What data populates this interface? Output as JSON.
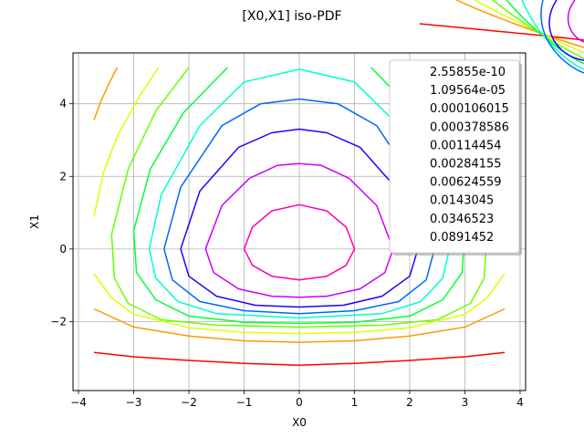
{
  "chart_data": {
    "type": "line",
    "title": "[X0,X1] iso-PDF",
    "xlabel": "X0",
    "ylabel": "X1",
    "xlim": [
      -4.1,
      4.1
    ],
    "ylim": [
      -3.9,
      5.4
    ],
    "x_ticks": [
      -4,
      -3,
      -2,
      -1,
      0,
      1,
      2,
      3,
      4
    ],
    "y_ticks": [
      -2,
      0,
      2,
      4
    ],
    "x_tick_labels": [
      "−4",
      "−3",
      "−2",
      "−1",
      "0",
      "1",
      "2",
      "3",
      "4"
    ],
    "y_tick_labels": [
      "−2",
      "0",
      "2",
      "4"
    ],
    "grid": true,
    "legend_position": "top-right",
    "series": [
      {
        "name": "2.55855e-10",
        "color": "#ff0000",
        "points": [
          [
            -3.72,
            -2.85
          ],
          [
            -3,
            -2.97
          ],
          [
            -2,
            -3.07
          ],
          [
            -1,
            -3.15
          ],
          [
            0,
            -3.2
          ],
          [
            1,
            -3.15
          ],
          [
            2,
            -3.07
          ],
          [
            3,
            -2.97
          ],
          [
            3.72,
            -2.85
          ]
        ]
      },
      {
        "name": "1.09564e-05",
        "color": "#ff9900",
        "points": [
          [
            -3.3,
            5.0
          ],
          [
            -3.45,
            4.55
          ],
          [
            -3.6,
            4.05
          ],
          [
            -3.72,
            3.55
          ]
        ],
        "points2": [
          [
            -3.72,
            -1.65
          ],
          [
            -3,
            -2.15
          ],
          [
            -2,
            -2.4
          ],
          [
            -1,
            -2.53
          ],
          [
            0,
            -2.57
          ],
          [
            1,
            -2.53
          ],
          [
            2,
            -2.4
          ],
          [
            3,
            -2.15
          ],
          [
            3.72,
            -1.65
          ]
        ]
      },
      {
        "name": "0.000106015",
        "color": "#ddff00",
        "points": [
          [
            -2.55,
            5.0
          ],
          [
            -2.9,
            4.2
          ],
          [
            -3.3,
            3.1
          ],
          [
            -3.55,
            2.1
          ],
          [
            -3.72,
            0.9
          ]
        ],
        "points2": [
          [
            -3.72,
            -0.68
          ],
          [
            -3.4,
            -1.35
          ],
          [
            -3,
            -1.8
          ],
          [
            -2,
            -2.17
          ],
          [
            -1,
            -2.3
          ],
          [
            0,
            -2.33
          ],
          [
            1,
            -2.3
          ],
          [
            2,
            -2.17
          ],
          [
            3,
            -1.8
          ],
          [
            3.4,
            -1.35
          ],
          [
            3.72,
            -0.68
          ]
        ]
      },
      {
        "name": "0.000378586",
        "color": "#66ff00",
        "points": [
          [
            -2.0,
            5.0
          ],
          [
            -2.6,
            3.8
          ],
          [
            -3.1,
            2.2
          ],
          [
            -3.4,
            0.4
          ],
          [
            -3.35,
            -0.8
          ],
          [
            -3.1,
            -1.5
          ],
          [
            -2.5,
            -1.95
          ],
          [
            -1.5,
            -2.1
          ],
          [
            0,
            -2.15
          ],
          [
            1.5,
            -2.1
          ],
          [
            2.5,
            -1.95
          ],
          [
            3.1,
            -1.5
          ],
          [
            3.35,
            -0.8
          ],
          [
            3.4,
            0.4
          ],
          [
            3.1,
            2.2
          ],
          [
            2.6,
            3.8
          ],
          [
            2.0,
            5.0
          ]
        ]
      },
      {
        "name": "0.00114454",
        "color": "#00ff33",
        "points": [
          [
            -1.3,
            5.0
          ],
          [
            -2.1,
            3.75
          ],
          [
            -2.7,
            2.2
          ],
          [
            -3.0,
            0.5
          ],
          [
            -2.95,
            -0.65
          ],
          [
            -2.6,
            -1.4
          ],
          [
            -2,
            -1.85
          ],
          [
            -1,
            -2.02
          ],
          [
            0,
            -2.05
          ],
          [
            1,
            -2.02
          ],
          [
            2,
            -1.85
          ],
          [
            2.6,
            -1.4
          ],
          [
            2.95,
            -0.65
          ],
          [
            3.0,
            0.5
          ],
          [
            2.7,
            2.2
          ],
          [
            2.1,
            3.75
          ],
          [
            1.3,
            5.0
          ]
        ]
      },
      {
        "name": "0.00284155",
        "color": "#00ffcc",
        "points": [
          [
            -2.72,
            0.0
          ],
          [
            -2.6,
            -0.8
          ],
          [
            -2.2,
            -1.45
          ],
          [
            -1.5,
            -1.78
          ],
          [
            0,
            -1.9
          ],
          [
            1.5,
            -1.78
          ],
          [
            2.2,
            -1.45
          ],
          [
            2.6,
            -0.8
          ],
          [
            2.72,
            0.0
          ],
          [
            2.5,
            1.5
          ],
          [
            1.8,
            3.4
          ],
          [
            1.0,
            4.6
          ],
          [
            0,
            4.95
          ],
          [
            -1.0,
            4.6
          ],
          [
            -1.8,
            3.4
          ],
          [
            -2.5,
            1.5
          ],
          [
            -2.72,
            0.0
          ]
        ]
      },
      {
        "name": "0.00624559",
        "color": "#0066ff",
        "points": [
          [
            -2.45,
            0.0
          ],
          [
            -2.3,
            -0.85
          ],
          [
            -1.8,
            -1.45
          ],
          [
            -1,
            -1.7
          ],
          [
            0,
            -1.78
          ],
          [
            1,
            -1.7
          ],
          [
            1.8,
            -1.45
          ],
          [
            2.3,
            -0.85
          ],
          [
            2.45,
            0.0
          ],
          [
            2.15,
            1.7
          ],
          [
            1.4,
            3.4
          ],
          [
            0.7,
            4.0
          ],
          [
            0,
            4.13
          ],
          [
            -0.7,
            4.0
          ],
          [
            -1.4,
            3.4
          ],
          [
            -2.15,
            1.7
          ],
          [
            -2.45,
            0.0
          ]
        ]
      },
      {
        "name": "0.0143045",
        "color": "#2200ff",
        "points": [
          [
            -2.15,
            0.0
          ],
          [
            -2.0,
            -0.75
          ],
          [
            -1.5,
            -1.3
          ],
          [
            -0.8,
            -1.55
          ],
          [
            0,
            -1.6
          ],
          [
            0.8,
            -1.55
          ],
          [
            1.5,
            -1.3
          ],
          [
            2.0,
            -0.75
          ],
          [
            2.15,
            0.0
          ],
          [
            1.8,
            1.6
          ],
          [
            1.1,
            2.8
          ],
          [
            0.5,
            3.2
          ],
          [
            0,
            3.3
          ],
          [
            -0.5,
            3.2
          ],
          [
            -1.1,
            2.8
          ],
          [
            -1.8,
            1.6
          ],
          [
            -2.15,
            0.0
          ]
        ]
      },
      {
        "name": "0.0346523",
        "color": "#cc00ff",
        "points": [
          [
            -1.7,
            0.0
          ],
          [
            -1.55,
            -0.65
          ],
          [
            -1.1,
            -1.1
          ],
          [
            -0.5,
            -1.3
          ],
          [
            0,
            -1.33
          ],
          [
            0.5,
            -1.3
          ],
          [
            1.1,
            -1.1
          ],
          [
            1.55,
            -0.65
          ],
          [
            1.7,
            0.0
          ],
          [
            1.4,
            1.2
          ],
          [
            0.9,
            1.95
          ],
          [
            0.4,
            2.3
          ],
          [
            0,
            2.35
          ],
          [
            -0.4,
            2.3
          ],
          [
            -0.9,
            1.95
          ],
          [
            -1.4,
            1.2
          ],
          [
            -1.7,
            0.0
          ]
        ]
      },
      {
        "name": "0.0891452",
        "color": "#ff00aa",
        "points": [
          [
            -1.0,
            0.0
          ],
          [
            -0.85,
            -0.45
          ],
          [
            -0.5,
            -0.75
          ],
          [
            0,
            -0.85
          ],
          [
            0.5,
            -0.75
          ],
          [
            0.85,
            -0.45
          ],
          [
            1.0,
            0.0
          ],
          [
            0.85,
            0.6
          ],
          [
            0.5,
            1.05
          ],
          [
            0,
            1.22
          ],
          [
            -0.5,
            1.05
          ],
          [
            -0.85,
            0.6
          ],
          [
            -1.0,
            0.0
          ]
        ]
      }
    ]
  }
}
